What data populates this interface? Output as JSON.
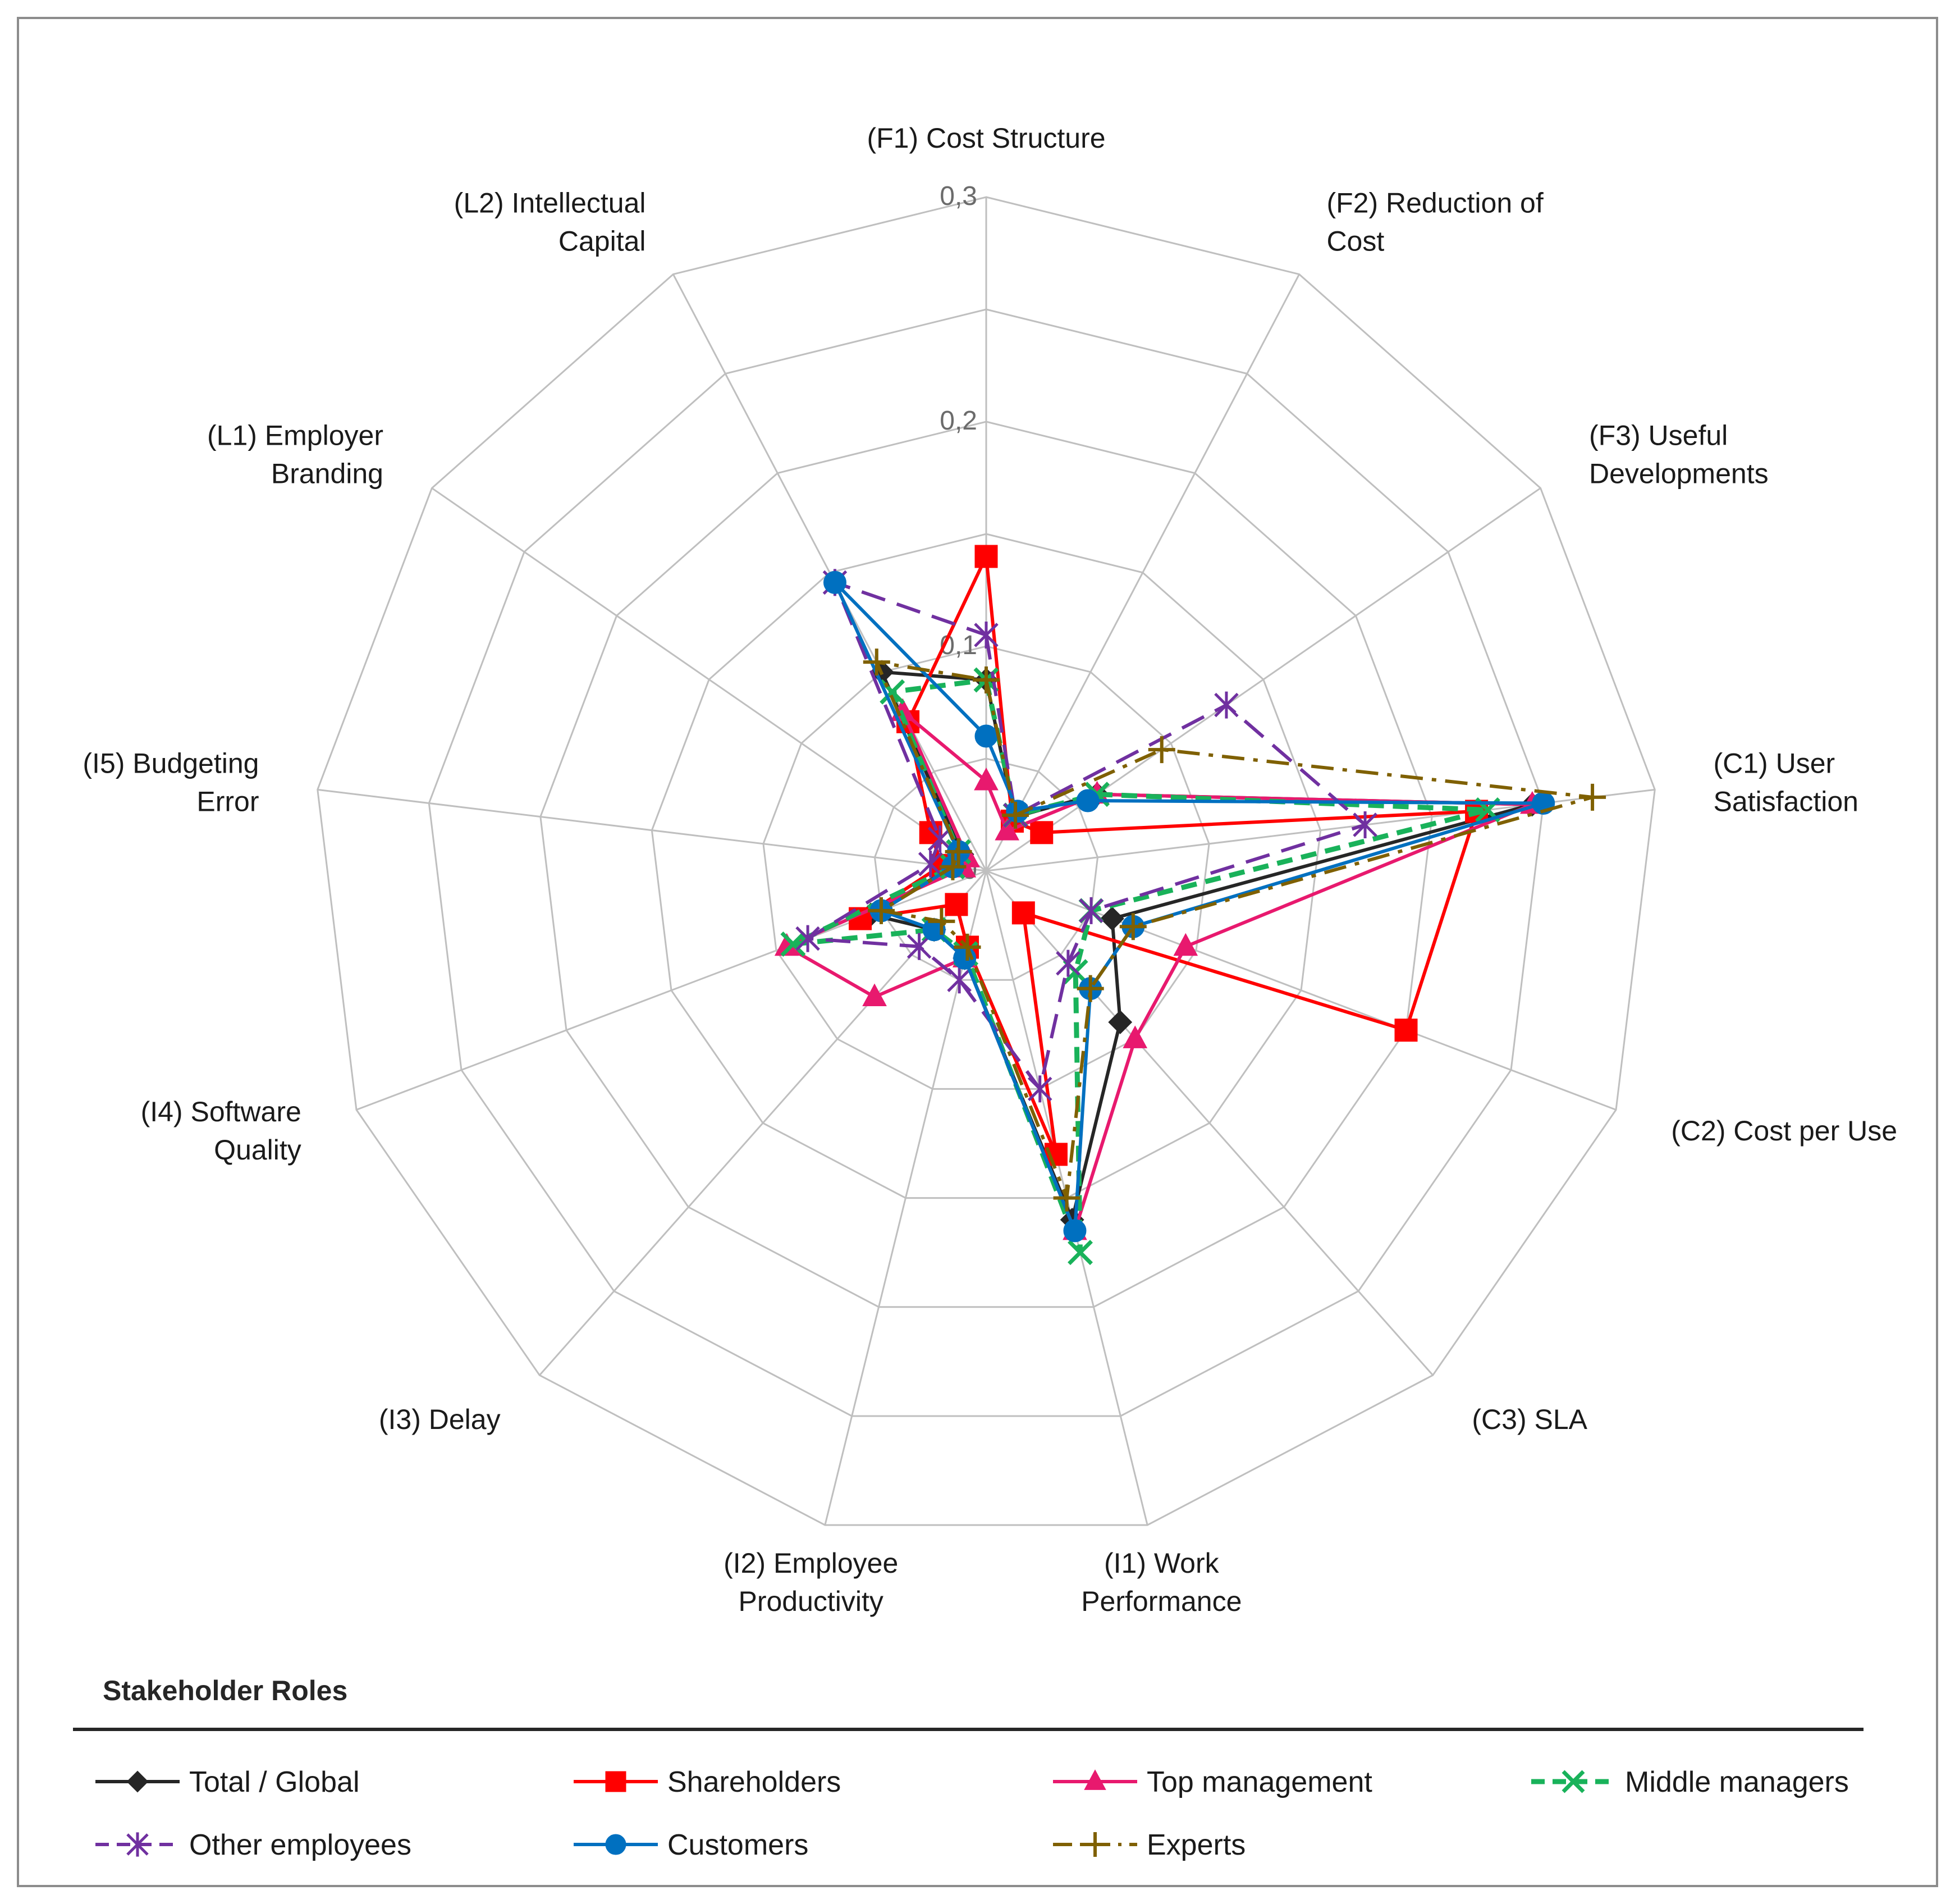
{
  "chart_data": {
    "type": "radar",
    "title": "",
    "rlim": [
      0,
      0.3
    ],
    "ticks": [
      {
        "value": 0,
        "label": "0"
      },
      {
        "value": 0.1,
        "label": "0,1"
      },
      {
        "value": 0.2,
        "label": "0,2"
      },
      {
        "value": 0.3,
        "label": "0,3"
      }
    ],
    "axes": [
      [
        "(F1) Cost Structure"
      ],
      [
        "(F2) Reduction of",
        "Cost"
      ],
      [
        "(F3) Useful",
        "Developments"
      ],
      [
        "(C1) User",
        "Satisfaction"
      ],
      [
        "(C2) Cost per Use"
      ],
      [
        "(C3) SLA"
      ],
      [
        "(I1) Work",
        "Performance"
      ],
      [
        "(I2) Employee",
        "Productivity"
      ],
      [
        "(I3) Delay"
      ],
      [
        "(I4) Software",
        "Quality"
      ],
      [
        "(I5) Budgeting",
        "Error"
      ],
      [
        "(L1) Employer",
        "Branding"
      ],
      [
        "(L2) Intellectual",
        "Capital"
      ]
    ],
    "legend_title": "Stakeholder Roles",
    "series": [
      {
        "name": "Total / Global",
        "color": "#262626",
        "dash": "solid",
        "marker": "diamond",
        "values": [
          0.085,
          0.027,
          0.06,
          0.245,
          0.06,
          0.09,
          0.16,
          0.04,
          0.035,
          0.055,
          0.015,
          0.013,
          0.1
        ]
      },
      {
        "name": "Shareholders",
        "color": "#ff0000",
        "dash": "solid",
        "marker": "square",
        "values": [
          0.14,
          0.025,
          0.03,
          0.22,
          0.2,
          0.025,
          0.13,
          0.035,
          0.02,
          0.06,
          0.02,
          0.03,
          0.075
        ]
      },
      {
        "name": "Top management",
        "color": "#e8196e",
        "dash": "solid",
        "marker": "triangle",
        "values": [
          0.04,
          0.02,
          0.06,
          0.245,
          0.095,
          0.1,
          0.165,
          0.04,
          0.075,
          0.095,
          0.01,
          0.01,
          0.08
        ]
      },
      {
        "name": "Middle managers",
        "color": "#19b25a",
        "dash": "dash",
        "marker": "x",
        "values": [
          0.085,
          0.028,
          0.06,
          0.225,
          0.05,
          0.06,
          0.175,
          0.038,
          0.035,
          0.092,
          0.015,
          0.015,
          0.09
        ]
      },
      {
        "name": "Other employees",
        "color": "#7030a0",
        "dash": "dashlong",
        "marker": "star",
        "values": [
          0.105,
          0.028,
          0.13,
          0.17,
          0.05,
          0.055,
          0.1,
          0.05,
          0.045,
          0.085,
          0.025,
          0.025,
          0.145
        ]
      },
      {
        "name": "Customers",
        "color": "#0070c0",
        "dash": "solid",
        "marker": "circle",
        "values": [
          0.06,
          0.03,
          0.055,
          0.25,
          0.07,
          0.07,
          0.165,
          0.04,
          0.035,
          0.05,
          0.015,
          0.015,
          0.145
        ]
      },
      {
        "name": "Experts",
        "color": "#7f6000",
        "dash": "dashdot",
        "marker": "plus",
        "values": [
          0.085,
          0.028,
          0.095,
          0.272,
          0.07,
          0.07,
          0.15,
          0.035,
          0.03,
          0.05,
          0.015,
          0.015,
          0.105
        ]
      }
    ]
  }
}
